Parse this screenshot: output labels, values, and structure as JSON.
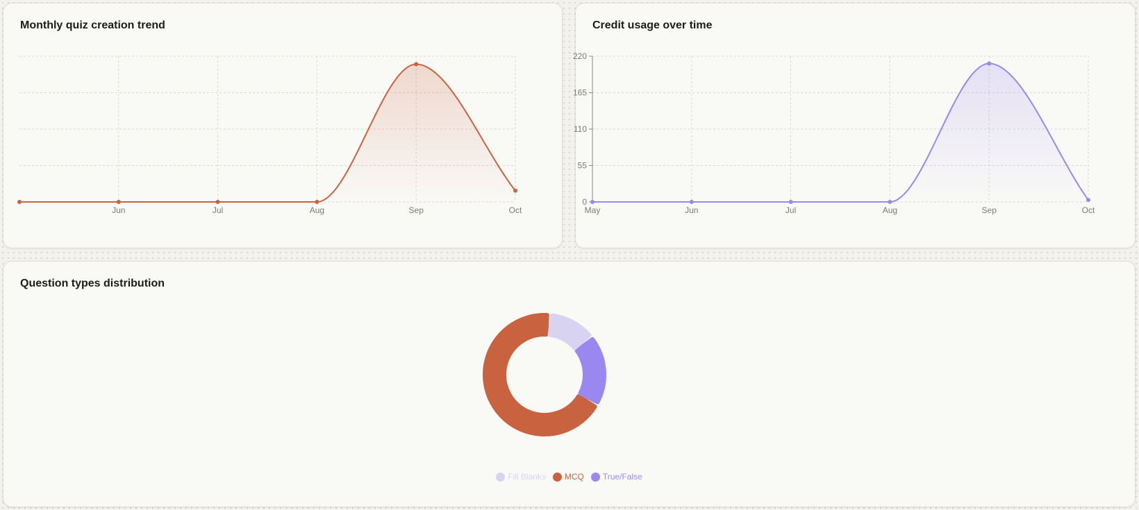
{
  "cards": {
    "quiz_trend": {
      "title": "Monthly quiz creation trend"
    },
    "credit_usage": {
      "title": "Credit usage over time"
    },
    "question_types": {
      "title": "Question types distribution"
    }
  },
  "colors": {
    "mcq": "#c9623f",
    "true_false": "#9b87f0",
    "fill_blanks": "#d9d3f2",
    "grid": "#d9d7d0",
    "axis_text": "#7c7a74"
  },
  "chart_data": [
    {
      "id": "quiz_trend",
      "type": "area",
      "title": "Monthly quiz creation trend",
      "categories": [
        "May",
        "Jun",
        "Jul",
        "Aug",
        "Sep",
        "Oct"
      ],
      "x_tick_labels": [
        "",
        "Jun",
        "Jul",
        "Aug",
        "Sep",
        "Oct"
      ],
      "series": [
        {
          "values": [
            0,
            0,
            0,
            0,
            208,
            17
          ]
        }
      ],
      "ylim": [
        0,
        220
      ],
      "y_axis_visible": false,
      "grid": true,
      "color": "#c9623f"
    },
    {
      "id": "credit_usage",
      "type": "area",
      "title": "Credit usage over time",
      "categories": [
        "May",
        "Jun",
        "Jul",
        "Aug",
        "Sep",
        "Oct"
      ],
      "x_tick_labels": [
        "May",
        "Jun",
        "Jul",
        "Aug",
        "Sep",
        "Oct"
      ],
      "series": [
        {
          "values": [
            0,
            0,
            0,
            0,
            209,
            3
          ]
        }
      ],
      "y_ticks": [
        0,
        55,
        110,
        165,
        220
      ],
      "ylim": [
        0,
        220
      ],
      "y_axis_visible": true,
      "grid": true,
      "color": "#9b87f0"
    },
    {
      "id": "question_types",
      "type": "pie",
      "title": "Question types distribution",
      "donut": true,
      "slices": [
        {
          "label": "MCQ",
          "value": 64,
          "color": "#c9623f"
        },
        {
          "label": "Fill Blanks",
          "value": 12,
          "color": "#d9d3f2"
        },
        {
          "label": "True/False",
          "value": 18,
          "color": "#9b87f0"
        }
      ],
      "legend": [
        "Fill Blanks",
        "MCQ",
        "True/False"
      ],
      "legend_position": "bottom"
    }
  ]
}
